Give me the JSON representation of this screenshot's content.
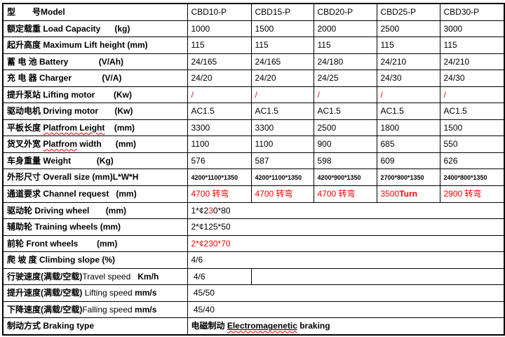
{
  "colors": {
    "border": "#000000",
    "text": "#000000",
    "accent_red": "#ff0000",
    "background": "#ffffff"
  },
  "table": {
    "models": [
      "CBD10-P",
      "CBD15-P",
      "CBD20-P",
      "CBD25-P",
      "CBD30-P"
    ],
    "rows": [
      {
        "name": "model",
        "label": [
          {
            "t": "型　　号Model"
          }
        ],
        "cells": [
          {
            "span": 1,
            "parts": [
              {
                "t": "CBD10-P"
              }
            ]
          },
          {
            "span": 1,
            "parts": [
              {
                "t": "CBD15-P"
              }
            ]
          },
          {
            "span": 1,
            "parts": [
              {
                "t": "CBD20-P"
              }
            ]
          },
          {
            "span": 1,
            "parts": [
              {
                "t": "CBD25-P"
              }
            ]
          },
          {
            "span": 1,
            "parts": [
              {
                "t": "CBD30-P"
              }
            ]
          }
        ]
      },
      {
        "name": "load-capacity",
        "label": [
          {
            "t": "额定载重 Load Capacity      (kg)"
          }
        ],
        "cells": [
          {
            "span": 1,
            "parts": [
              {
                "t": "1000"
              }
            ]
          },
          {
            "span": 1,
            "parts": [
              {
                "t": "1500"
              }
            ]
          },
          {
            "span": 1,
            "parts": [
              {
                "t": "2000"
              }
            ]
          },
          {
            "span": 1,
            "parts": [
              {
                "t": "2500"
              }
            ]
          },
          {
            "span": 1,
            "parts": [
              {
                "t": "3000"
              }
            ]
          }
        ]
      },
      {
        "name": "max-lift-height",
        "label": [
          {
            "t": "起升高度 Maximum Lift height (mm)"
          }
        ],
        "cells": [
          {
            "span": 1,
            "parts": [
              {
                "t": "115"
              }
            ]
          },
          {
            "span": 1,
            "parts": [
              {
                "t": "115"
              }
            ]
          },
          {
            "span": 1,
            "parts": [
              {
                "t": "115"
              }
            ]
          },
          {
            "span": 1,
            "parts": [
              {
                "t": "115"
              }
            ]
          },
          {
            "span": 1,
            "parts": [
              {
                "t": "115"
              }
            ]
          }
        ]
      },
      {
        "name": "battery",
        "label": [
          {
            "t": "蓄 电 池 Battery             (V/Ah)"
          }
        ],
        "cells": [
          {
            "span": 1,
            "parts": [
              {
                "t": "24/165"
              }
            ]
          },
          {
            "span": 1,
            "parts": [
              {
                "t": "24/165"
              }
            ]
          },
          {
            "span": 1,
            "parts": [
              {
                "t": "24/180"
              }
            ]
          },
          {
            "span": 1,
            "parts": [
              {
                "t": "24/210"
              }
            ]
          },
          {
            "span": 1,
            "parts": [
              {
                "t": "24/210"
              }
            ]
          }
        ]
      },
      {
        "name": "charger",
        "label": [
          {
            "t": "充 电 器 Charger             (V/A)"
          }
        ],
        "cells": [
          {
            "span": 1,
            "parts": [
              {
                "t": "24/20"
              }
            ]
          },
          {
            "span": 1,
            "parts": [
              {
                "t": "24/20"
              }
            ]
          },
          {
            "span": 1,
            "parts": [
              {
                "t": "24/25"
              }
            ]
          },
          {
            "span": 1,
            "parts": [
              {
                "t": "24/30"
              }
            ]
          },
          {
            "span": 1,
            "parts": [
              {
                "t": "24/30"
              }
            ]
          }
        ]
      },
      {
        "name": "lifting-motor",
        "label": [
          {
            "t": "提升泵站 Lifting motor        (Kw)"
          }
        ],
        "cells": [
          {
            "span": 1,
            "parts": [
              {
                "t": "/",
                "red": true
              }
            ]
          },
          {
            "span": 1,
            "parts": [
              {
                "t": "/",
                "red": true
              }
            ]
          },
          {
            "span": 1,
            "parts": [
              {
                "t": "/",
                "red": true
              }
            ]
          },
          {
            "span": 1,
            "parts": [
              {
                "t": "/",
                "red": true
              }
            ]
          },
          {
            "span": 1,
            "parts": [
              {
                "t": "/",
                "red": true
              }
            ]
          }
        ]
      },
      {
        "name": "driving-motor",
        "label": [
          {
            "t": "驱动电机 Driving motor       (Kw)"
          }
        ],
        "cells": [
          {
            "span": 1,
            "parts": [
              {
                "t": "AC1.5"
              }
            ]
          },
          {
            "span": 1,
            "parts": [
              {
                "t": "AC1.5"
              }
            ]
          },
          {
            "span": 1,
            "parts": [
              {
                "t": "AC1.5"
              }
            ]
          },
          {
            "span": 1,
            "parts": [
              {
                "t": "AC1.5"
              }
            ]
          },
          {
            "span": 1,
            "parts": [
              {
                "t": "AC1.5"
              }
            ]
          }
        ]
      },
      {
        "name": "platform-length",
        "label": [
          {
            "t": "平板长度 "
          },
          {
            "t": "Platfrom Leight",
            "wavy": true
          },
          {
            "t": "    (mm)"
          }
        ],
        "cells": [
          {
            "span": 1,
            "parts": [
              {
                "t": "3300"
              }
            ]
          },
          {
            "span": 1,
            "parts": [
              {
                "t": "3300"
              }
            ]
          },
          {
            "span": 1,
            "parts": [
              {
                "t": "2500"
              }
            ]
          },
          {
            "span": 1,
            "parts": [
              {
                "t": "1800"
              }
            ]
          },
          {
            "span": 1,
            "parts": [
              {
                "t": "1500"
              }
            ]
          }
        ]
      },
      {
        "name": "platform-width",
        "label": [
          {
            "t": "货叉外宽 "
          },
          {
            "t": "Platfrom",
            "wavy": true
          },
          {
            "t": " width      (mm)"
          }
        ],
        "cells": [
          {
            "span": 1,
            "parts": [
              {
                "t": "1100"
              }
            ]
          },
          {
            "span": 1,
            "parts": [
              {
                "t": "1100"
              }
            ]
          },
          {
            "span": 1,
            "parts": [
              {
                "t": "900"
              }
            ]
          },
          {
            "span": 1,
            "parts": [
              {
                "t": "685"
              }
            ]
          },
          {
            "span": 1,
            "parts": [
              {
                "t": "550"
              }
            ]
          }
        ]
      },
      {
        "name": "weight",
        "label": [
          {
            "t": "车身重量 Weight           (Kg)"
          }
        ],
        "cells": [
          {
            "span": 1,
            "parts": [
              {
                "t": "576"
              }
            ]
          },
          {
            "span": 1,
            "parts": [
              {
                "t": "587"
              }
            ]
          },
          {
            "span": 1,
            "parts": [
              {
                "t": "598"
              }
            ]
          },
          {
            "span": 1,
            "parts": [
              {
                "t": "609"
              }
            ]
          },
          {
            "span": 1,
            "parts": [
              {
                "t": "626"
              }
            ]
          }
        ]
      },
      {
        "name": "overall-size",
        "label": [
          {
            "t": "外形尺寸 Overall size (mm)L*W*H"
          }
        ],
        "cells": [
          {
            "span": 1,
            "parts": [
              {
                "t": "4200*1100*1350",
                "small": true
              }
            ]
          },
          {
            "span": 1,
            "parts": [
              {
                "t": "4200*1100*1350",
                "small": true
              }
            ]
          },
          {
            "span": 1,
            "parts": [
              {
                "t": "4200*900*1350",
                "small": true
              }
            ]
          },
          {
            "span": 1,
            "parts": [
              {
                "t": "2700*800*1350",
                "small": true
              }
            ]
          },
          {
            "span": 1,
            "parts": [
              {
                "t": "2400*800*1350",
                "small": true
              }
            ]
          }
        ]
      },
      {
        "name": "channel-request",
        "label": [
          {
            "t": "通道要求 Channel request   (mm)"
          }
        ],
        "cells": [
          {
            "span": 1,
            "parts": [
              {
                "t": "4700 转弯",
                "red": true
              }
            ]
          },
          {
            "span": 1,
            "parts": [
              {
                "t": "4700 转弯",
                "red": true
              }
            ]
          },
          {
            "span": 1,
            "parts": [
              {
                "t": "4700 转弯",
                "red": true
              }
            ]
          },
          {
            "span": 1,
            "parts": [
              {
                "t": "3500",
                "red": true
              },
              {
                "t": "Turn",
                "red": true,
                "b": true
              }
            ]
          },
          {
            "span": 1,
            "parts": [
              {
                "t": "2900 转弯",
                "red": true
              }
            ]
          }
        ]
      },
      {
        "name": "driving-wheel",
        "label": [
          {
            "t": "驱动轮 Driving wheel       (mm)"
          }
        ],
        "cells": [
          {
            "span": 5,
            "parts": [
              {
                "t": "1*¢2"
              },
              {
                "t": "3",
                "red": true
              },
              {
                "t": "0*80"
              }
            ]
          }
        ]
      },
      {
        "name": "training-wheels",
        "label": [
          {
            "t": "辅助轮 Training wheels (mm)"
          }
        ],
        "cells": [
          {
            "span": 5,
            "parts": [
              {
                "t": "2*¢125*50"
              }
            ]
          }
        ]
      },
      {
        "name": "front-wheels",
        "label": [
          {
            "t": "前轮 Front wheels        (mm)"
          }
        ],
        "cells": [
          {
            "span": 5,
            "parts": [
              {
                "t": "2*¢230*70",
                "red": true
              }
            ]
          }
        ]
      },
      {
        "name": "climbing-slope",
        "label": [
          {
            "t": "爬 坡 度 Climbing slope (%)"
          }
        ],
        "cells": [
          {
            "span": 5,
            "parts": [
              {
                "t": "4/6"
              }
            ]
          }
        ]
      },
      {
        "name": "travel-speed",
        "label": [
          {
            "t": "行驶速度(满载/空载)"
          },
          {
            "t": "Travel speed",
            "b": false
          },
          {
            "t": "   Km/h"
          }
        ],
        "cells": [
          {
            "span": 1,
            "parts": [
              {
                "t": " 4/6"
              }
            ]
          },
          {
            "span": 4,
            "parts": []
          }
        ]
      },
      {
        "name": "lifting-speed",
        "label": [
          {
            "t": "提升速度(满载/空载) "
          },
          {
            "t": "Lifting speed ",
            "b": false
          },
          {
            "t": "mm/s"
          }
        ],
        "cells": [
          {
            "span": 5,
            "parts": [
              {
                "t": " 45/50"
              }
            ]
          }
        ]
      },
      {
        "name": "falling-speed",
        "label": [
          {
            "t": "下降速度(满载/空载)"
          },
          {
            "t": "Falling speed ",
            "b": false
          },
          {
            "t": "mm/s"
          }
        ],
        "cells": [
          {
            "span": 5,
            "parts": [
              {
                "t": " 45/40"
              }
            ]
          }
        ]
      },
      {
        "name": "braking-type",
        "label": [
          {
            "t": "制动方式 Braking type"
          }
        ],
        "cells": [
          {
            "span": 5,
            "parts": [
              {
                "t": "电磁制动 ",
                "b": true
              },
              {
                "t": "Electromagenetic",
                "b": true,
                "u": true,
                "wavy": true
              },
              {
                "t": " braking",
                "b": true
              }
            ]
          }
        ]
      }
    ]
  }
}
